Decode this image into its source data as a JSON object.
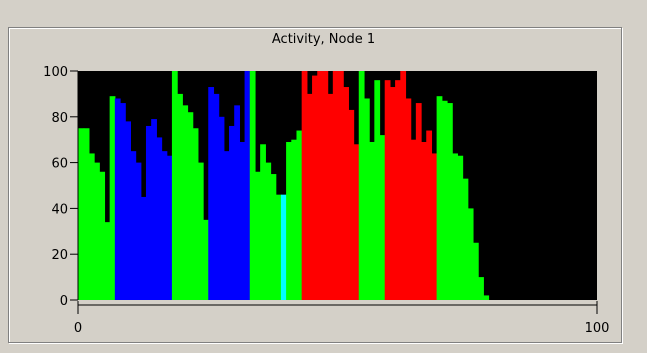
{
  "chart_data": {
    "type": "bar",
    "title": "Activity, Node 1",
    "xlabel": "",
    "ylabel": "",
    "xlim": [
      0,
      100
    ],
    "ylim": [
      0,
      100
    ],
    "x_ticks": [
      0,
      100
    ],
    "y_ticks": [
      0,
      20,
      40,
      60,
      80,
      100
    ],
    "grid": false,
    "legend": "none",
    "plot_background": "#000000",
    "series": [
      {
        "color": "#00ff00",
        "bins": [
          0,
          1,
          2,
          3,
          4,
          5,
          6
        ],
        "values": [
          75,
          75,
          64,
          60,
          56,
          34,
          89
        ]
      },
      {
        "color": "#0000ff",
        "bins": [
          7,
          8,
          9,
          10,
          11,
          12,
          13,
          14,
          15,
          16,
          17
        ],
        "values": [
          88,
          86,
          78,
          65,
          60,
          45,
          76,
          79,
          71,
          65,
          63
        ]
      },
      {
        "color": "#00ff00",
        "bins": [
          18,
          19,
          20,
          21,
          22,
          23,
          24
        ],
        "values": [
          100,
          90,
          85,
          82,
          75,
          60,
          35
        ]
      },
      {
        "color": "#0000ff",
        "bins": [
          25,
          26,
          27,
          28,
          29,
          30,
          31,
          32
        ],
        "values": [
          93,
          90,
          80,
          65,
          76,
          85,
          69,
          100
        ]
      },
      {
        "color": "#00ff00",
        "bins": [
          33,
          34,
          35,
          36,
          37,
          38
        ],
        "values": [
          100,
          56,
          68,
          60,
          55,
          46
        ]
      },
      {
        "color": "#00ffff",
        "bins": [
          39
        ],
        "values": [
          46
        ]
      },
      {
        "color": "#00ff00",
        "bins": [
          40,
          41,
          42
        ],
        "values": [
          69,
          70,
          74
        ]
      },
      {
        "color": "#ff0000",
        "bins": [
          43,
          44,
          45,
          46,
          47,
          48,
          49,
          50,
          51,
          52,
          53
        ],
        "values": [
          100,
          90,
          98,
          100,
          100,
          90,
          100,
          100,
          93,
          83,
          68
        ]
      },
      {
        "color": "#00ff00",
        "bins": [
          54,
          55,
          56,
          57,
          58
        ],
        "values": [
          100,
          88,
          69,
          96,
          72
        ]
      },
      {
        "color": "#ff0000",
        "bins": [
          59,
          60,
          61,
          62,
          63,
          64,
          65,
          66,
          67,
          68
        ],
        "values": [
          96,
          93,
          96,
          100,
          88,
          70,
          86,
          69,
          74,
          64
        ]
      },
      {
        "color": "#00ff00",
        "bins": [
          69,
          70,
          71,
          72,
          73,
          74,
          75,
          76,
          77,
          78
        ],
        "values": [
          89,
          87,
          86,
          64,
          63,
          53,
          40,
          25,
          10,
          2
        ]
      }
    ]
  }
}
